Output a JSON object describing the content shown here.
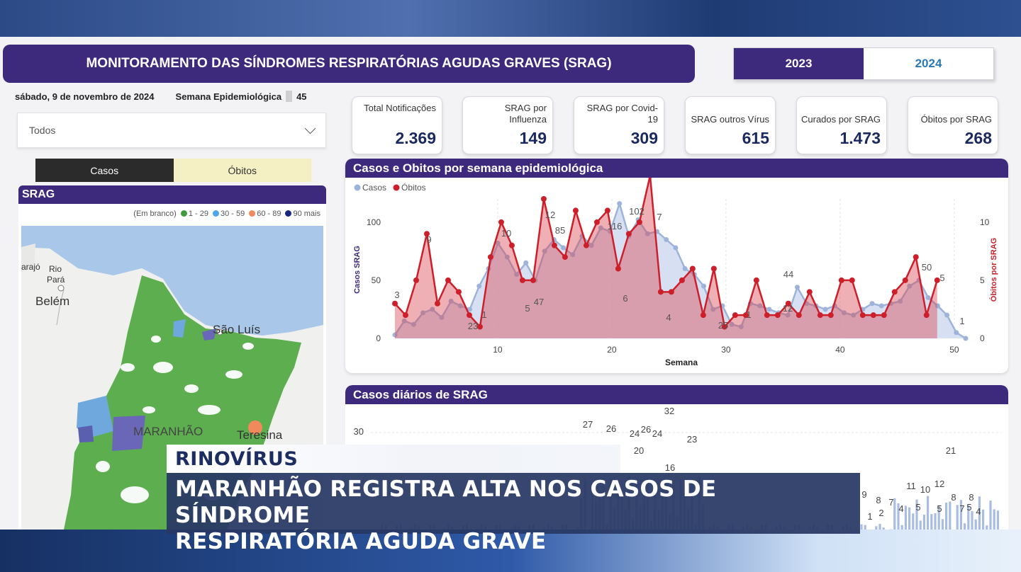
{
  "header": {
    "title": "MONITORAMENTO DAS SÍNDROMES RESPIRATÓRIAS AGUDAS GRAVES (SRAG)",
    "year_tabs": [
      "2023",
      "2024"
    ],
    "date": "sábado, 9 de novembro de 2024",
    "week_label": "Semana Epidemiológica",
    "week_value": "45"
  },
  "filter": {
    "selected": "Todos"
  },
  "view_tabs": [
    "Casos",
    "Óbitos"
  ],
  "map": {
    "title": "SRAG",
    "legend": [
      "(Em branco)",
      "1 - 29",
      "30 - 59",
      "60 - 89",
      "90 mais"
    ],
    "legend_colors": [
      "#3e9b3a",
      "#4ea5e8",
      "#f08a5d",
      "#1a237e"
    ],
    "cities": [
      "arajó",
      "Rio",
      "Pará",
      "Belém",
      "São Luís",
      "MARANHÃO",
      "Teresina"
    ]
  },
  "kpis": [
    {
      "label": "Total Notificações",
      "value": "2.369"
    },
    {
      "label": "SRAG por Influenza",
      "value": "149"
    },
    {
      "label": "SRAG por Covid-19",
      "value": "309"
    },
    {
      "label": "SRAG outros Vírus",
      "value": "615"
    },
    {
      "label": "Curados por SRAG",
      "value": "1.473"
    },
    {
      "label": "Óbitos por SRAG",
      "value": "268"
    }
  ],
  "chart_data": [
    {
      "type": "line",
      "title": "Casos e Obitos por semana epidemiológica",
      "xlabel": "Semana",
      "ylabel": "Casos SRAG",
      "y2label": "Óbitos por SRAG",
      "x_ticks": [
        10,
        20,
        30,
        40,
        50
      ],
      "y_ticks": [
        0,
        50,
        100
      ],
      "y2_ticks": [
        0,
        5,
        10
      ],
      "ylim": [
        0,
        120
      ],
      "y2lim": [
        0,
        12
      ],
      "legend": "top-left",
      "series": [
        {
          "name": "Casos",
          "color": "#9db3d9",
          "values": [
            3,
            15,
            12,
            22,
            25,
            18,
            32,
            28,
            25,
            45,
            60,
            82,
            70,
            55,
            65,
            50,
            75,
            85,
            78,
            72,
            88,
            80,
            95,
            92,
            116,
            88,
            102,
            90,
            92,
            85,
            78,
            60,
            55,
            45,
            25,
            28,
            12,
            10,
            30,
            28,
            25,
            22,
            20,
            44,
            30,
            28,
            25,
            28,
            22,
            20,
            25,
            30,
            28,
            30,
            32,
            45,
            50,
            35,
            28,
            20,
            5,
            0
          ]
        },
        {
          "name": "Óbitos",
          "color": "#cc1f2a",
          "values": [
            3,
            2,
            5,
            9,
            3,
            5,
            4,
            2,
            1,
            7,
            10,
            8,
            5,
            5,
            12,
            8,
            7,
            11,
            8,
            10,
            11,
            6,
            9,
            10,
            14,
            4,
            4,
            5,
            6,
            2,
            6,
            1,
            2,
            2,
            5,
            2,
            2,
            3,
            2,
            4,
            2,
            2,
            5,
            5,
            2,
            2,
            2,
            4,
            5,
            7,
            2,
            5
          ]
        }
      ],
      "data_labels": [
        "3",
        "9",
        "10",
        "12",
        "85",
        "116",
        "102",
        "7",
        "5",
        "47",
        "23",
        "1",
        "6",
        "4",
        "25",
        "1",
        "12",
        "44",
        "50",
        "5",
        "1"
      ]
    },
    {
      "type": "bar",
      "title": "Casos diários de SRAG",
      "y_ticks": [
        30
      ],
      "data_labels": [
        "27",
        "26",
        "24",
        "26",
        "24",
        "32",
        "23",
        "20",
        "16",
        "9",
        "8",
        "7",
        "11",
        "10",
        "12",
        "21",
        "8",
        "8",
        "5",
        "5",
        "4",
        "7",
        "5",
        "4",
        "2",
        "1"
      ]
    }
  ],
  "news": {
    "tag": "RINOVÍRUS",
    "headline_line1": "MARANHÃO REGISTRA ALTA NOS CASOS DE SÍNDROME",
    "headline_line2": "RESPIRATÓRIA AGUDA GRAVE"
  }
}
